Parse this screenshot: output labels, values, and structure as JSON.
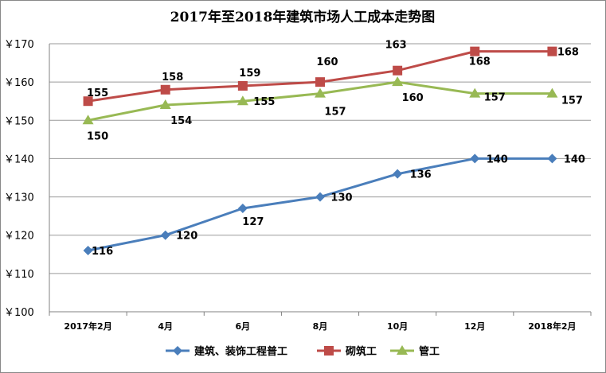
{
  "chart_data": {
    "type": "line",
    "title": "2017年至2018年建筑市场人工成本走势图",
    "categories": [
      "2017年2月",
      "4月",
      "6月",
      "8月",
      "10月",
      "12月",
      "2018年2月"
    ],
    "ylim": [
      100,
      170
    ],
    "yticks": [
      "￥100",
      "￥110",
      "￥120",
      "￥130",
      "￥140",
      "￥150",
      "￥160",
      "￥170"
    ],
    "ytick_values": [
      100,
      110,
      120,
      130,
      140,
      150,
      160,
      170
    ],
    "grid": true,
    "legend_position": "bottom",
    "series": [
      {
        "name": "建筑、装饰工程普工",
        "color": "#4a7ebb",
        "marker": "diamond",
        "values": [
          116,
          120,
          127,
          130,
          136,
          140,
          140
        ],
        "labels": [
          "116",
          "120",
          "127",
          "130",
          "136",
          "140",
          "140"
        ]
      },
      {
        "name": "砌筑工",
        "color": "#be4b48",
        "marker": "square",
        "values": [
          155,
          158,
          159,
          160,
          163,
          168,
          168
        ],
        "labels": [
          "155",
          "158",
          "159",
          "160",
          "163",
          "168",
          "168"
        ]
      },
      {
        "name": "管工",
        "color": "#98b954",
        "marker": "triangle",
        "values": [
          150,
          154,
          155,
          157,
          160,
          157,
          157
        ],
        "labels": [
          "150",
          "154",
          "155",
          "157",
          "160",
          "157",
          "157"
        ]
      }
    ]
  }
}
